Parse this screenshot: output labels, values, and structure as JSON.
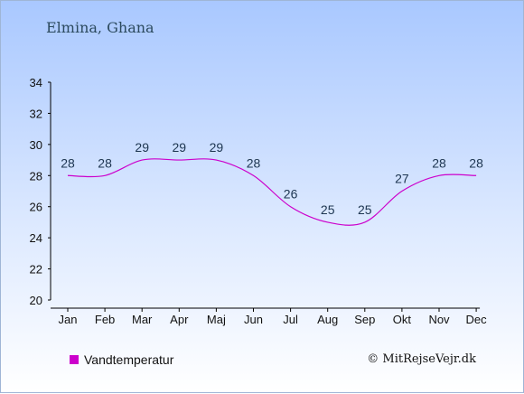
{
  "location": "Elmina, Ghana",
  "legend": {
    "label": "Vandtemperatur",
    "color": "#cc00cc"
  },
  "copyright": "© MitRejseVejr.dk",
  "chart_data": {
    "type": "line",
    "title": "",
    "xlabel": "",
    "ylabel": "",
    "categories": [
      "Jan",
      "Feb",
      "Mar",
      "Apr",
      "Maj",
      "Jun",
      "Jul",
      "Aug",
      "Sep",
      "Okt",
      "Nov",
      "Dec"
    ],
    "series": [
      {
        "name": "Vandtemperatur",
        "values": [
          28,
          28,
          29,
          29,
          29,
          28,
          26,
          25,
          25,
          27,
          28,
          28
        ],
        "color": "#cc00cc"
      }
    ],
    "ylim": [
      20,
      34
    ],
    "yticks": [
      20,
      22,
      24,
      26,
      28,
      30,
      32,
      34
    ],
    "grid": false,
    "legend_position": "bottom-left"
  }
}
